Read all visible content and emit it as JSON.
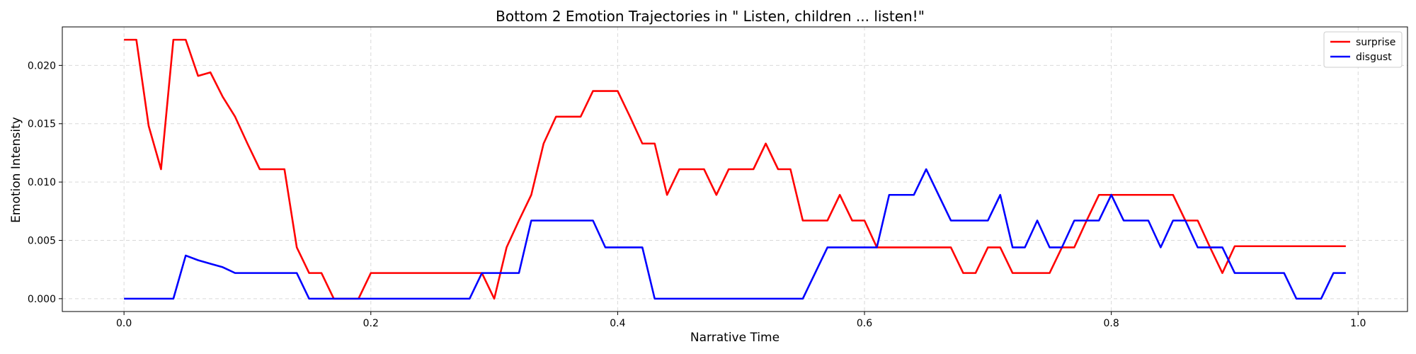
{
  "chart_data": {
    "type": "line",
    "title": "Bottom 2 Emotion Trajectories in \" Listen, children ... listen!\"",
    "xlabel": "Narrative Time",
    "ylabel": "Emotion Intensity",
    "xlim": [
      -0.05,
      1.04
    ],
    "ylim": [
      -0.0011,
      0.0233
    ],
    "x_ticks": [
      0.0,
      0.2,
      0.4,
      0.6,
      0.8,
      1.0
    ],
    "x_tick_labels": [
      "0.0",
      "0.2",
      "0.4",
      "0.6",
      "0.8",
      "1.0"
    ],
    "y_ticks": [
      0.0,
      0.005,
      0.01,
      0.015,
      0.02
    ],
    "y_tick_labels": [
      "0.000",
      "0.005",
      "0.010",
      "0.015",
      "0.020"
    ],
    "grid": true,
    "legend_position": "top-right",
    "x": [
      0.0,
      0.01,
      0.02,
      0.03,
      0.04,
      0.05,
      0.06,
      0.07,
      0.08,
      0.09,
      0.1,
      0.11,
      0.12,
      0.13,
      0.14,
      0.15,
      0.16,
      0.17,
      0.18,
      0.19,
      0.2,
      0.21,
      0.22,
      0.23,
      0.24,
      0.25,
      0.26,
      0.27,
      0.28,
      0.29,
      0.3,
      0.31,
      0.32,
      0.33,
      0.34,
      0.35,
      0.36,
      0.37,
      0.38,
      0.39,
      0.4,
      0.41,
      0.42,
      0.43,
      0.44,
      0.45,
      0.46,
      0.47,
      0.48,
      0.49,
      0.5,
      0.51,
      0.52,
      0.53,
      0.54,
      0.55,
      0.56,
      0.57,
      0.58,
      0.59,
      0.6,
      0.61,
      0.62,
      0.63,
      0.64,
      0.65,
      0.66,
      0.67,
      0.68,
      0.69,
      0.7,
      0.71,
      0.72,
      0.73,
      0.74,
      0.75,
      0.76,
      0.77,
      0.78,
      0.79,
      0.8,
      0.81,
      0.82,
      0.83,
      0.84,
      0.85,
      0.86,
      0.87,
      0.88,
      0.89,
      0.9,
      0.91,
      0.92,
      0.93,
      0.94,
      0.95,
      0.96,
      0.97,
      0.98,
      0.99
    ],
    "series": [
      {
        "name": "surprise",
        "color": "#ff0000",
        "values": [
          0.0222,
          0.0222,
          0.0148,
          0.0111,
          0.0222,
          0.0222,
          0.0191,
          0.0194,
          0.0173,
          0.0156,
          0.0133,
          0.0111,
          0.0111,
          0.0111,
          0.0044,
          0.0022,
          0.0022,
          0.0,
          0.0,
          0.0,
          0.0022,
          0.0022,
          0.0022,
          0.0022,
          0.0022,
          0.0022,
          0.0022,
          0.0022,
          0.0022,
          0.0022,
          0.0,
          0.0044,
          0.0067,
          0.0089,
          0.0133,
          0.0156,
          0.0156,
          0.0156,
          0.0178,
          0.0178,
          0.0178,
          0.0156,
          0.0133,
          0.0133,
          0.0089,
          0.0111,
          0.0111,
          0.0111,
          0.0089,
          0.0111,
          0.0111,
          0.0111,
          0.0133,
          0.0111,
          0.0111,
          0.0067,
          0.0067,
          0.0067,
          0.0089,
          0.0067,
          0.0067,
          0.0044,
          0.0044,
          0.0044,
          0.0044,
          0.0044,
          0.0044,
          0.0044,
          0.0022,
          0.0022,
          0.0044,
          0.0044,
          0.0022,
          0.0022,
          0.0022,
          0.0022,
          0.0044,
          0.0044,
          0.0067,
          0.0089,
          0.0089,
          0.0089,
          0.0089,
          0.0089,
          0.0089,
          0.0089,
          0.0067,
          0.0067,
          0.0044,
          0.0022,
          0.0045,
          0.0045,
          0.0045,
          0.0045,
          0.0045,
          0.0045,
          0.0045,
          0.0045,
          0.0045,
          0.0045
        ]
      },
      {
        "name": "disgust",
        "color": "#0000ff",
        "values": [
          0.0,
          0.0,
          0.0,
          0.0,
          0.0,
          0.0037,
          0.0033,
          0.003,
          0.0027,
          0.0022,
          0.0022,
          0.0022,
          0.0022,
          0.0022,
          0.0022,
          0.0,
          0.0,
          0.0,
          0.0,
          0.0,
          0.0,
          0.0,
          0.0,
          0.0,
          0.0,
          0.0,
          0.0,
          0.0,
          0.0,
          0.0022,
          0.0022,
          0.0022,
          0.0022,
          0.0067,
          0.0067,
          0.0067,
          0.0067,
          0.0067,
          0.0067,
          0.0044,
          0.0044,
          0.0044,
          0.0044,
          0.0,
          0.0,
          0.0,
          0.0,
          0.0,
          0.0,
          0.0,
          0.0,
          0.0,
          0.0,
          0.0,
          0.0,
          0.0,
          0.0022,
          0.0044,
          0.0044,
          0.0044,
          0.0044,
          0.0044,
          0.0089,
          0.0089,
          0.0089,
          0.0111,
          0.0089,
          0.0067,
          0.0067,
          0.0067,
          0.0067,
          0.0089,
          0.0044,
          0.0044,
          0.0067,
          0.0044,
          0.0044,
          0.0067,
          0.0067,
          0.0067,
          0.0089,
          0.0067,
          0.0067,
          0.0067,
          0.0044,
          0.0067,
          0.0067,
          0.0044,
          0.0044,
          0.0044,
          0.0022,
          0.0022,
          0.0022,
          0.0022,
          0.0022,
          0.0,
          0.0,
          0.0,
          0.0022,
          0.0022
        ]
      }
    ]
  }
}
